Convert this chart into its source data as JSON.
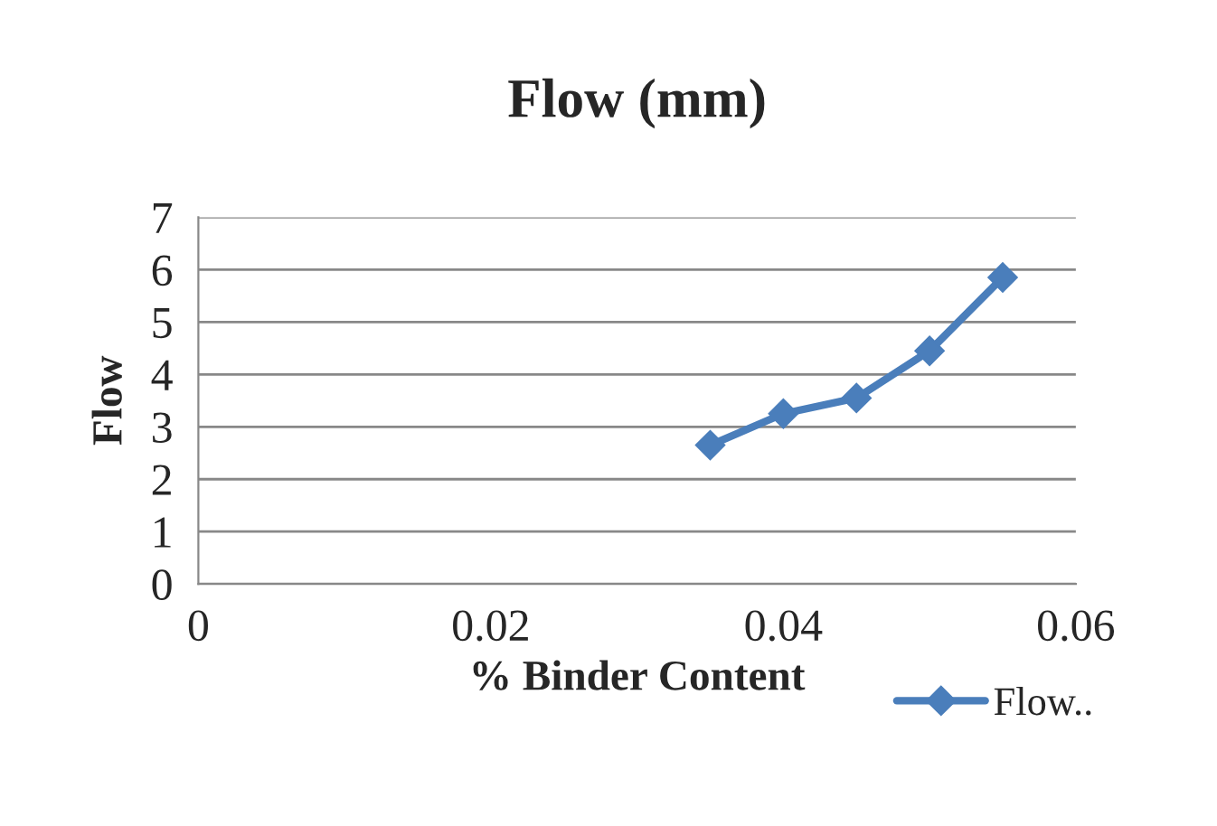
{
  "chart_data": {
    "type": "line",
    "title": "Flow (mm)",
    "xlabel": "% Binder Content",
    "ylabel": "Flow",
    "x": [
      0.035,
      0.04,
      0.045,
      0.05,
      0.055
    ],
    "series": [
      {
        "name": "Flow..",
        "color": "#4a7ebb",
        "values": [
          2.65,
          3.25,
          3.55,
          4.45,
          5.85
        ]
      }
    ],
    "xlim": [
      0,
      0.06
    ],
    "xticks": [
      0,
      0.02,
      0.04,
      0.06
    ],
    "ylim": [
      0,
      7
    ],
    "yticks": [
      0,
      1,
      2,
      3,
      4,
      5,
      6,
      7
    ],
    "grid": "y",
    "legend": "bottom right",
    "marker": "diamond",
    "line_style": "solid"
  }
}
